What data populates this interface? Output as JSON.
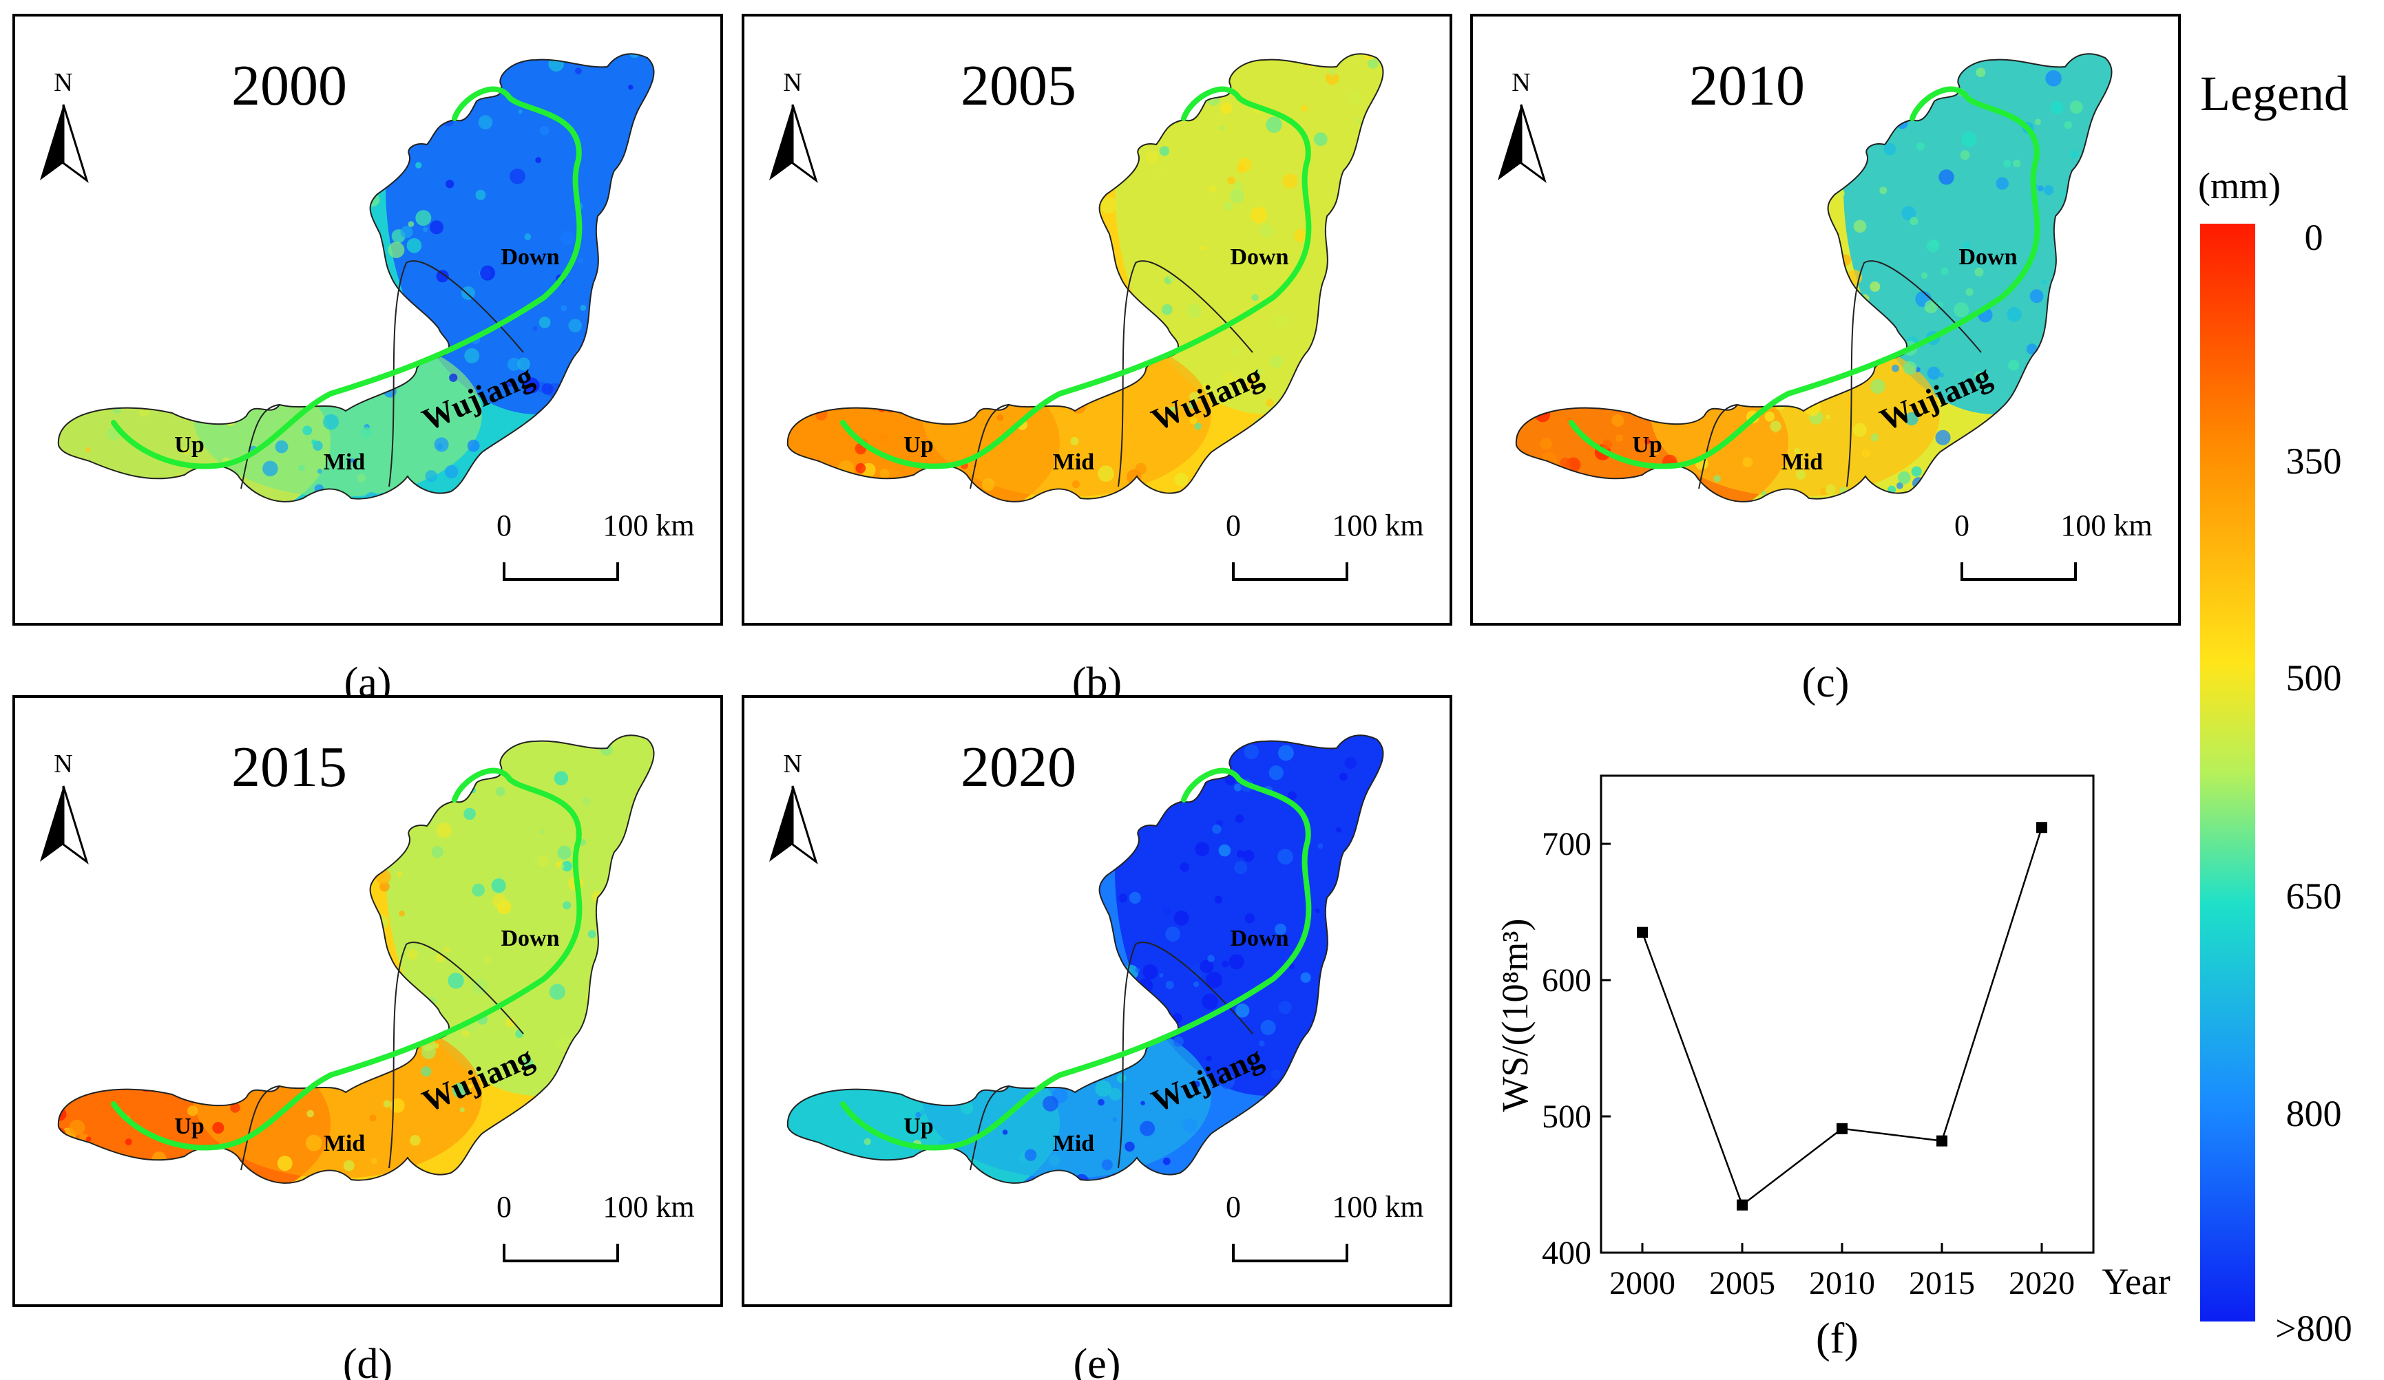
{
  "colors": {
    "ramp": [
      "#ff1a00",
      "#ff8a00",
      "#ffe51a",
      "#b6f05a",
      "#1ee0c8",
      "#1a8cff",
      "#0b1ef2"
    ],
    "river": "#22ee33",
    "frame": "#000000",
    "background": "#ffffff"
  },
  "panels": [
    {
      "year": "2000",
      "caption": "(a)",
      "mean_ws": 635
    },
    {
      "year": "2005",
      "caption": "(b)",
      "mean_ws": 435
    },
    {
      "year": "2010",
      "caption": "(c)",
      "mean_ws": 491
    },
    {
      "year": "2015",
      "caption": "(d)",
      "mean_ws": 482
    },
    {
      "year": "2020",
      "caption": "(e)",
      "mean_ws": 712
    }
  ],
  "map_labels": {
    "north": "N",
    "up": "Up",
    "mid": "Mid",
    "down": "Down",
    "river": "Wujiang",
    "scale_zero": "0",
    "scale_dist": "100 km"
  },
  "legend": {
    "title": "Legend",
    "unit": "(mm)",
    "ticks": [
      "0",
      "350",
      "500",
      "650",
      "800",
      ">800"
    ]
  },
  "chart_data": {
    "type": "line",
    "caption": "(f)",
    "categories": [
      "2000",
      "2005",
      "2010",
      "2015",
      "2020"
    ],
    "series": [
      {
        "name": "WS",
        "values": [
          635,
          435,
          491,
          482,
          712
        ]
      }
    ],
    "ylabel": "WS/((10⁸m³)",
    "xlabel": "Year",
    "ylim": [
      400,
      750
    ],
    "yticks": [
      400,
      500,
      600,
      700
    ],
    "grid": false
  }
}
